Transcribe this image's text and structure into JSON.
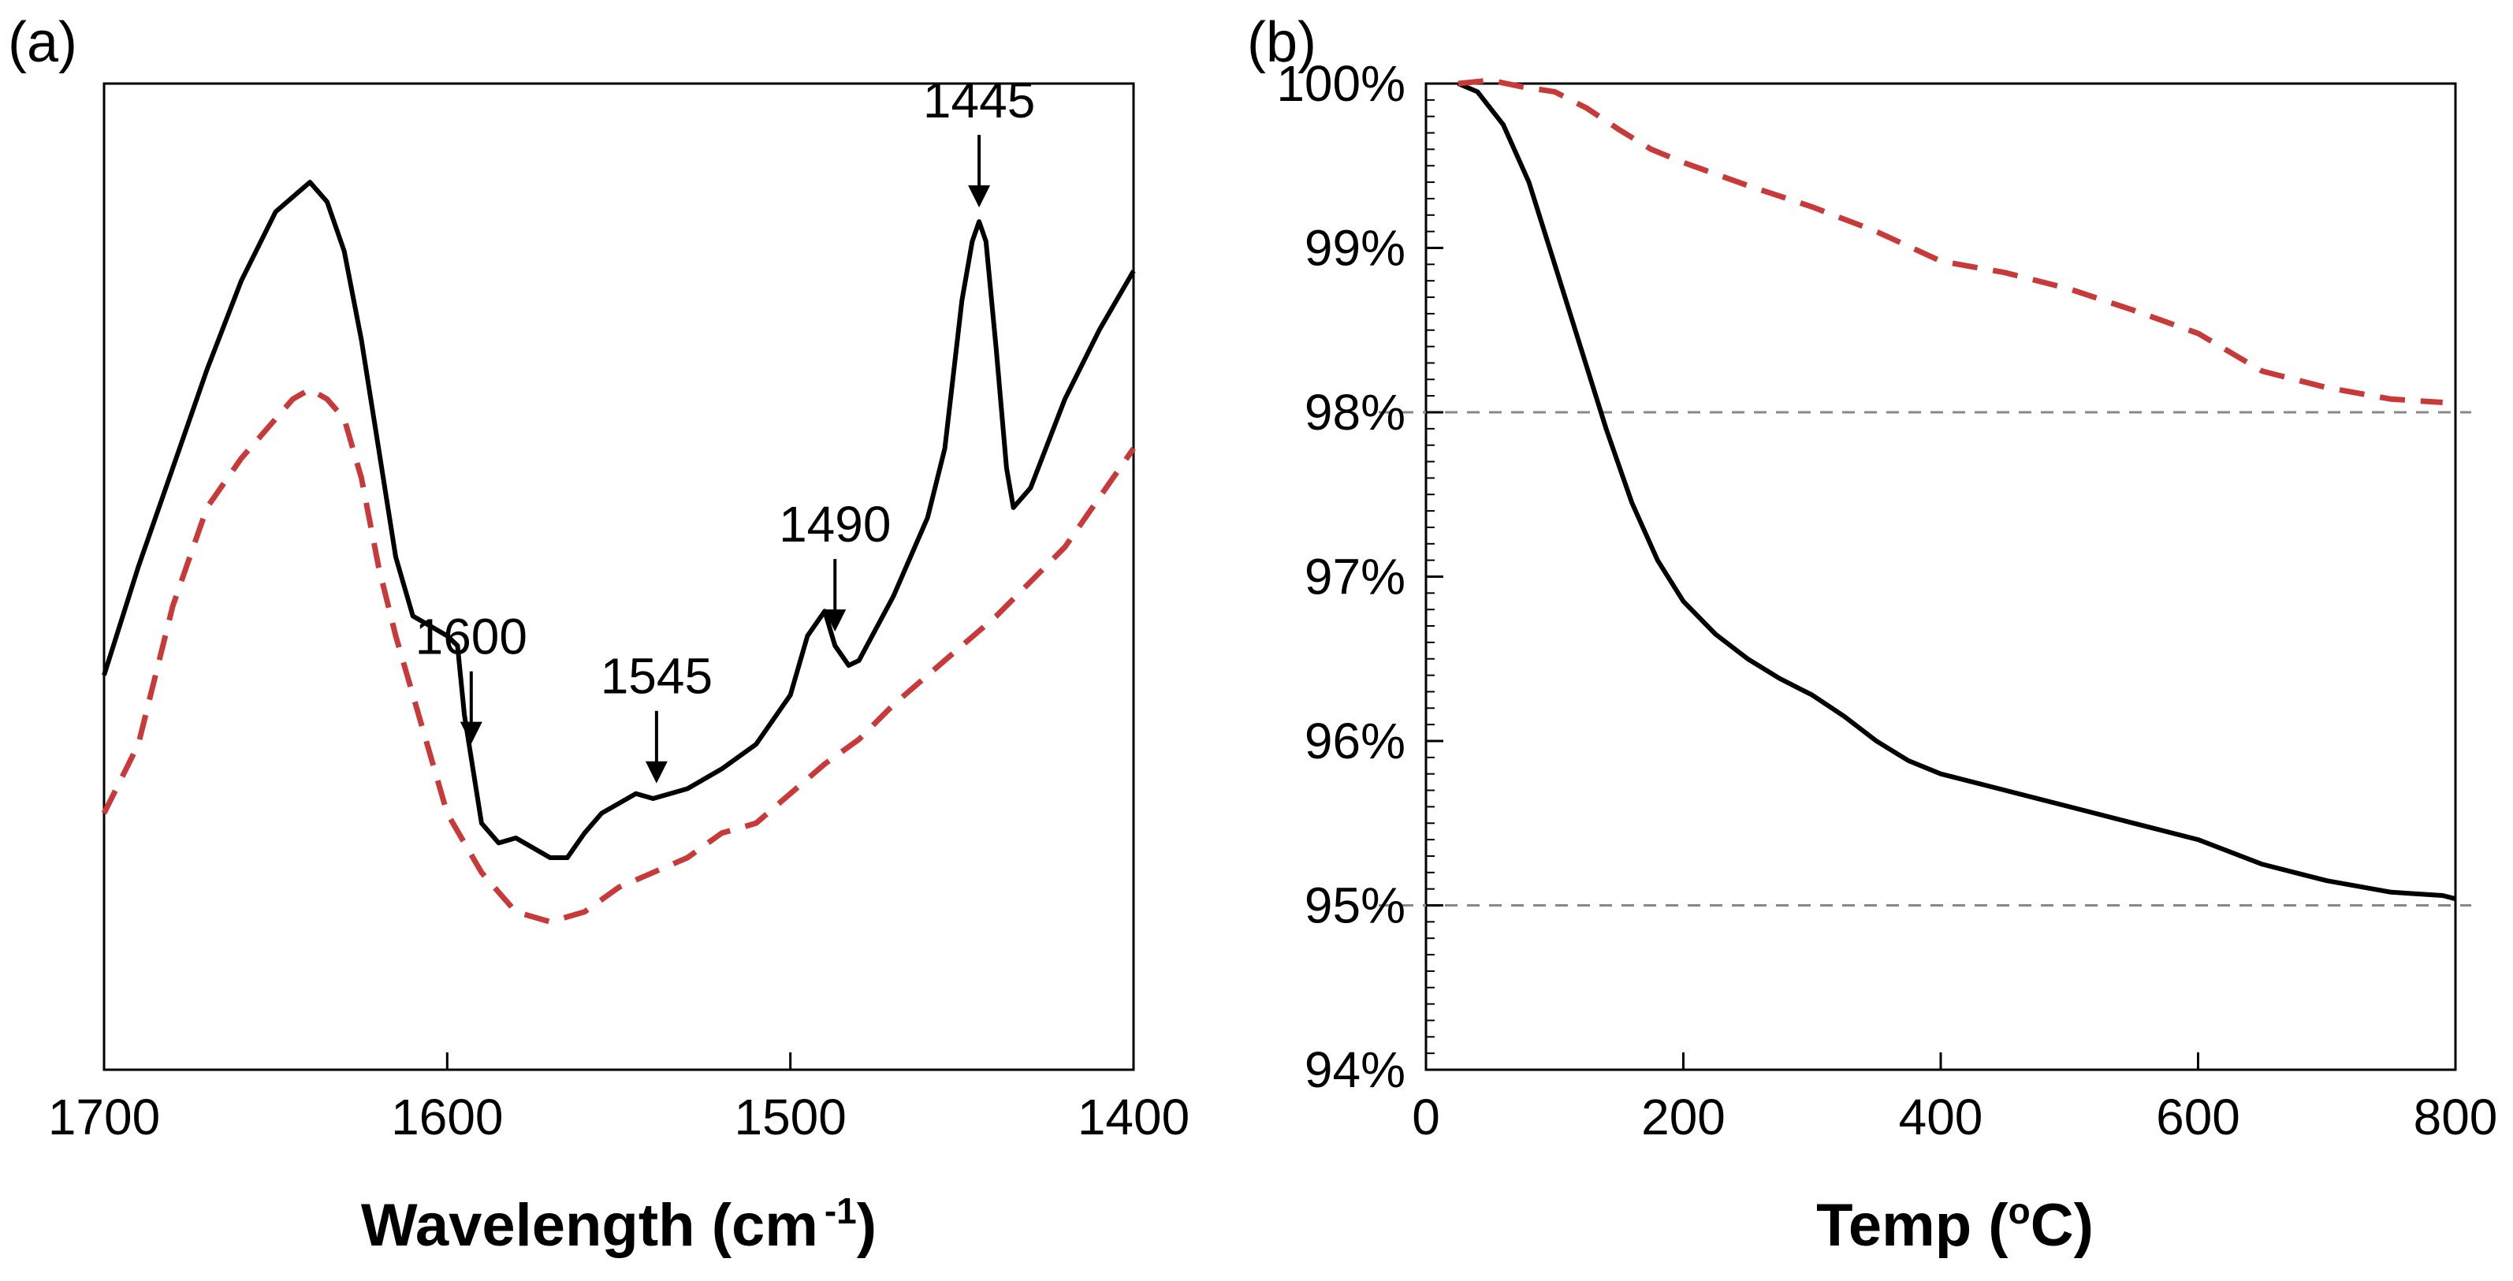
{
  "chart_data": [
    {
      "type": "line",
      "panel_label": "(a)",
      "title": "",
      "xlabel": "Wavelength (cm",
      "xlabel_superscript": "-1",
      "xlabel_close": ")",
      "ylabel": "",
      "xlim": [
        1700,
        1400
      ],
      "x_reversed": true,
      "ylim": [
        0,
        100
      ],
      "y_ticks_shown": false,
      "x_ticks": [
        "1700",
        "1600",
        "1500",
        "1400"
      ],
      "grid": false,
      "series": [
        {
          "name": "solid",
          "color": "#000000",
          "style": "solid",
          "x": [
            1700,
            1690,
            1680,
            1670,
            1660,
            1650,
            1640,
            1635,
            1630,
            1625,
            1620,
            1615,
            1610,
            1605,
            1600,
            1597,
            1595,
            1590,
            1585,
            1580,
            1575,
            1570,
            1565,
            1560,
            1555,
            1550,
            1545,
            1540,
            1535,
            1530,
            1520,
            1510,
            1500,
            1495,
            1490,
            1487,
            1483,
            1480,
            1470,
            1460,
            1455,
            1450,
            1447,
            1445,
            1443,
            1440,
            1437,
            1435,
            1430,
            1420,
            1410,
            1400
          ],
          "y": [
            40,
            51,
            61,
            71,
            80,
            87,
            90,
            88,
            83,
            74,
            63,
            52,
            46,
            45,
            44,
            43,
            36,
            25,
            23,
            23.5,
            22.5,
            21.5,
            21.5,
            24,
            26,
            27,
            28,
            27.5,
            28,
            28.5,
            30.5,
            33,
            38,
            44,
            46.5,
            43,
            41,
            41.5,
            48,
            56,
            63,
            78,
            84,
            86,
            84,
            73,
            61,
            57,
            59,
            68,
            75,
            81
          ]
        },
        {
          "name": "dashed",
          "color": "#c83a3a",
          "style": "dashed",
          "x": [
            1700,
            1690,
            1680,
            1670,
            1660,
            1650,
            1645,
            1640,
            1635,
            1630,
            1625,
            1620,
            1615,
            1610,
            1600,
            1590,
            1580,
            1570,
            1560,
            1550,
            1540,
            1530,
            1520,
            1510,
            1500,
            1490,
            1480,
            1470,
            1460,
            1450,
            1440,
            1430,
            1420,
            1410,
            1400
          ],
          "y": [
            26,
            33,
            47,
            57,
            62,
            66,
            68,
            69,
            68,
            66,
            60,
            51,
            44,
            38,
            26,
            20,
            16,
            15,
            16,
            18.5,
            20,
            21.5,
            24,
            25,
            28,
            31,
            33.5,
            37,
            40,
            43,
            46,
            49.5,
            53,
            58,
            63
          ]
        }
      ],
      "annotations": [
        {
          "label": "1600",
          "x": 1593
        },
        {
          "label": "1545",
          "x": 1539
        },
        {
          "label": "1490",
          "x": 1487
        },
        {
          "label": "1445",
          "x": 1445
        }
      ]
    },
    {
      "type": "line",
      "panel_label": "(b)",
      "title": "",
      "xlabel": "Temp (",
      "xlabel_superscript": "o",
      "xlabel_close": "C)",
      "ylabel": "",
      "xlim": [
        0,
        800
      ],
      "ylim": [
        94,
        100
      ],
      "x_ticks": [
        "0",
        "200",
        "400",
        "600",
        "800"
      ],
      "y_ticks": [
        "94%",
        "95%",
        "96%",
        "97%",
        "98%",
        "99%",
        "100%"
      ],
      "grid": false,
      "reference_lines_y": [
        98,
        95
      ],
      "series": [
        {
          "name": "solid",
          "color": "#000000",
          "style": "solid",
          "x": [
            25,
            40,
            60,
            80,
            100,
            120,
            140,
            160,
            180,
            200,
            225,
            250,
            275,
            300,
            325,
            350,
            375,
            400,
            450,
            500,
            550,
            600,
            650,
            700,
            750,
            790,
            800
          ],
          "y": [
            100,
            99.95,
            99.75,
            99.4,
            98.9,
            98.4,
            97.9,
            97.45,
            97.1,
            96.85,
            96.65,
            96.5,
            96.38,
            96.28,
            96.15,
            96.0,
            95.88,
            95.8,
            95.7,
            95.6,
            95.5,
            95.4,
            95.25,
            95.15,
            95.08,
            95.06,
            95.04
          ]
        },
        {
          "name": "dashed",
          "color": "#c83a3a",
          "style": "dashed",
          "x": [
            25,
            50,
            75,
            100,
            125,
            150,
            175,
            200,
            250,
            300,
            350,
            400,
            450,
            500,
            550,
            600,
            650,
            700,
            750,
            790
          ],
          "y": [
            100,
            100.02,
            99.98,
            99.95,
            99.85,
            99.72,
            99.6,
            99.52,
            99.38,
            99.25,
            99.1,
            98.92,
            98.85,
            98.75,
            98.62,
            98.48,
            98.25,
            98.15,
            98.08,
            98.06
          ]
        }
      ]
    }
  ]
}
